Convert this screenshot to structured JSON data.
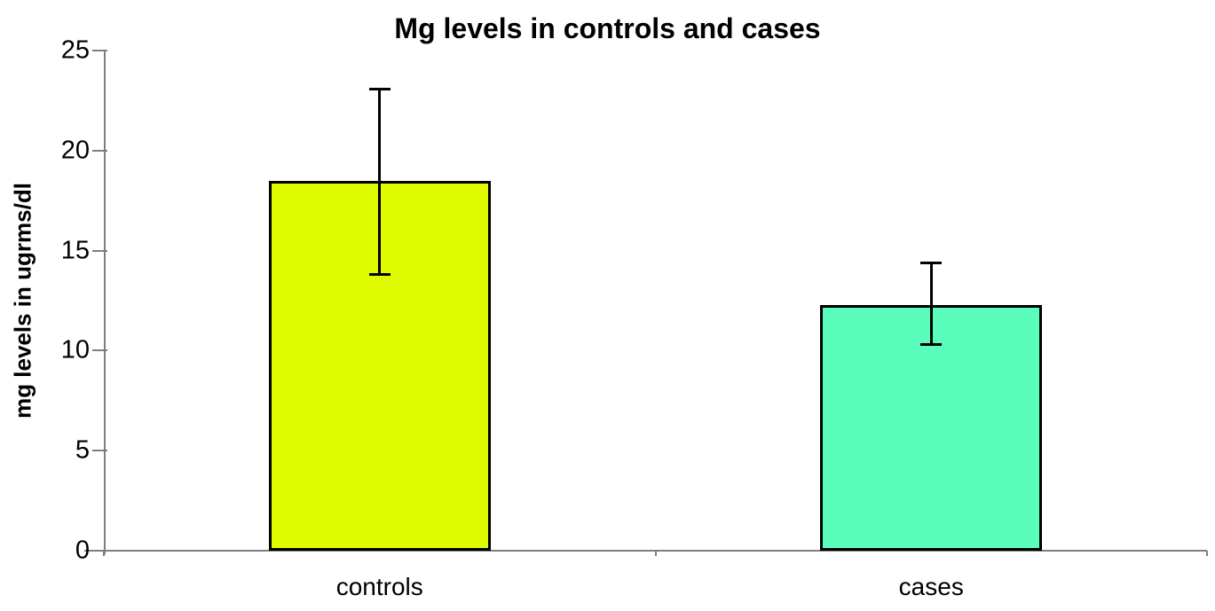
{
  "chart_data": {
    "type": "bar",
    "title": "Mg levels in controls and cases",
    "xlabel": "",
    "ylabel": "mg levels in ugrms/dl",
    "categories": [
      "controls",
      "cases"
    ],
    "values": [
      18.5,
      12.3
    ],
    "error_bars": {
      "upper": [
        23.1,
        14.4
      ],
      "lower": [
        13.8,
        10.3
      ]
    },
    "bar_colors": [
      "#dffb00",
      "#5bfdbd"
    ],
    "ylim": [
      0,
      25
    ],
    "yticks": [
      0,
      5,
      10,
      15,
      20,
      25
    ],
    "grid": false,
    "legend_position": "none",
    "axis_color": "#7f7f7f",
    "error_bar_color": "#000000",
    "background_color": "#ffffff"
  }
}
